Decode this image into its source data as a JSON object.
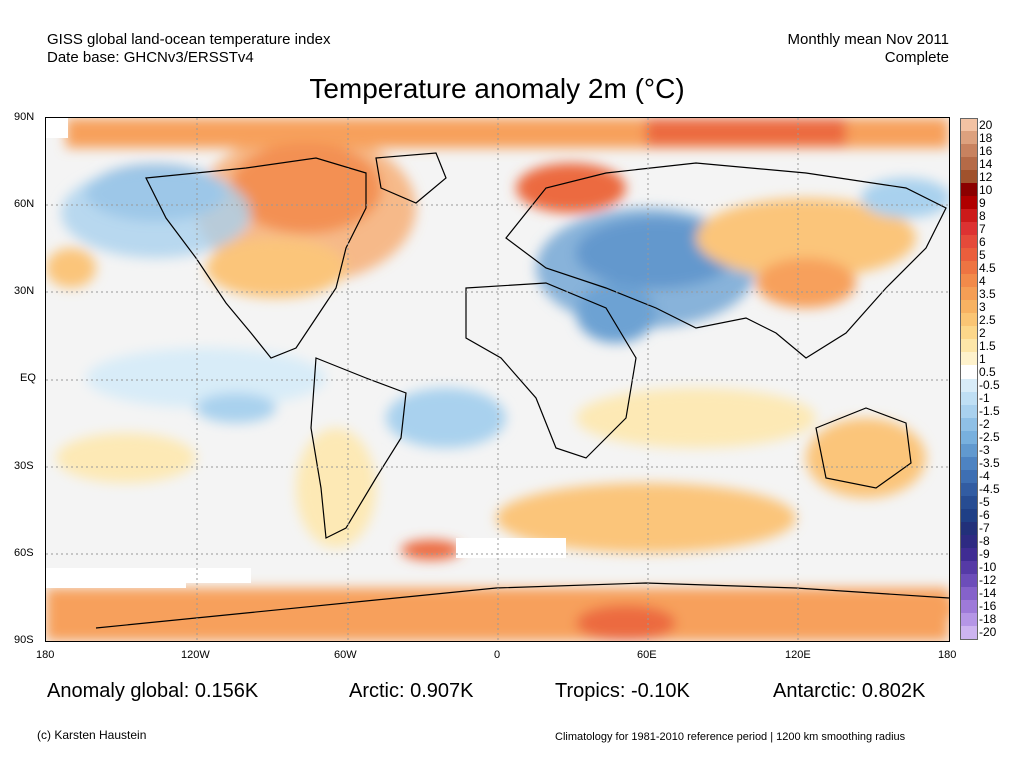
{
  "header": {
    "left_line1": "GISS global land-ocean temperature index",
    "left_line2": "Date base: GHCNv3/ERSSTv4",
    "right_line1": "Monthly mean Nov 2011",
    "right_line2": "Complete"
  },
  "map": {
    "title": "Temperature anomaly 2m (°C)",
    "lat_ticks": [
      "90N",
      "60N",
      "30N",
      "EQ",
      "30S",
      "60S",
      "90S"
    ],
    "lon_ticks": [
      "180",
      "120W",
      "60W",
      "0",
      "60E",
      "120E",
      "180"
    ],
    "colors": {
      "neutral": "#f4f4f4",
      "missing": "#ffffff",
      "warm_light": "#fde9b5",
      "warm": "#fbc57a",
      "warm_mid": "#f7a05c",
      "warm_strong": "#ec6b3f",
      "cool_light": "#d8ecf8",
      "cool": "#a9d1ee",
      "cool_mid": "#6da2d3",
      "cool_strong": "#3e6fb3"
    }
  },
  "colorbar": {
    "labels": [
      "20",
      "18",
      "16",
      "14",
      "12",
      "10",
      "9",
      "8",
      "7",
      "6",
      "5",
      "4.5",
      "4",
      "3.5",
      "3",
      "2.5",
      "2",
      "1.5",
      "1",
      "0.5",
      "-0.5",
      "-1",
      "-1.5",
      "-2",
      "-2.5",
      "-3",
      "-3.5",
      "-4",
      "-4.5",
      "-5",
      "-6",
      "-7",
      "-8",
      "-9",
      "-10",
      "-12",
      "-14",
      "-16",
      "-18",
      "-20"
    ],
    "colors": [
      "#f3c2a3",
      "#dda17e",
      "#c8825f",
      "#b56a47",
      "#a0522d",
      "#8b0000",
      "#b00000",
      "#cc1a1a",
      "#dd3232",
      "#e54a3a",
      "#ea5e3c",
      "#ee7442",
      "#f28a4a",
      "#f59e55",
      "#f7b262",
      "#fac574",
      "#fcd78a",
      "#fde6a8",
      "#fef2cc",
      "#ffffff",
      "#d8ecf8",
      "#bfdff4",
      "#a9d1ee",
      "#8fc0e6",
      "#78b0de",
      "#6199cf",
      "#4d83c2",
      "#3e6fb3",
      "#325ca2",
      "#274c92",
      "#1f3f86",
      "#22307a",
      "#2e2a82",
      "#3f2c93",
      "#553aa6",
      "#6c4db9",
      "#8562ca",
      "#9e7ad9",
      "#b596e6",
      "#cdb4f0"
    ]
  },
  "stats": {
    "global": "Anomaly global: 0.156K",
    "arctic": "Arctic: 0.907K",
    "tropics": "Tropics: -0.10K",
    "antarctic": "Antarctic: 0.802K"
  },
  "footer": {
    "credit": "(c) Karsten Haustein",
    "note": "Climatology for 1981-2010 reference period | 1200 km smoothing radius"
  }
}
